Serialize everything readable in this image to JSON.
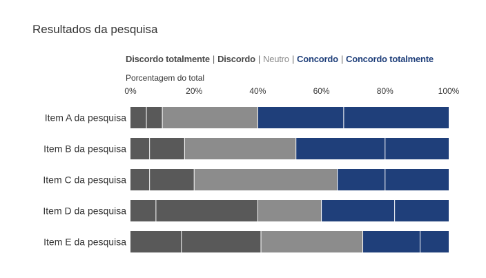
{
  "chart_data": {
    "type": "bar",
    "orientation": "horizontal",
    "stacked": true,
    "title": "Resultados da pesquisa",
    "xlabel": "Porcentagem do total",
    "ylabel": "",
    "xlim": [
      0,
      100
    ],
    "x_ticks": [
      "0%",
      "20%",
      "40%",
      "60%",
      "80%",
      "100%"
    ],
    "grid": false,
    "legend_position": "top",
    "categories": [
      "Item A da pesquisa",
      "Item B da pesquisa",
      "Item C da pesquisa",
      "Item D da pesquisa",
      "Item E da pesquisa"
    ],
    "series": [
      {
        "name": "Discordo totalmente",
        "color": "#595959",
        "values": [
          5,
          6,
          6,
          8,
          16
        ]
      },
      {
        "name": "Discordo",
        "color": "#595959",
        "values": [
          5,
          11,
          14,
          32,
          25
        ]
      },
      {
        "name": "Neutro",
        "color": "#8c8c8c",
        "values": [
          30,
          35,
          45,
          20,
          32
        ]
      },
      {
        "name": "Concordo",
        "color": "#1f3f7a",
        "values": [
          27,
          28,
          15,
          23,
          18
        ]
      },
      {
        "name": "Concordo totalmente",
        "color": "#1f3f7a",
        "values": [
          33,
          20,
          20,
          17,
          9
        ]
      }
    ]
  },
  "legend": {
    "separator": "|",
    "items": [
      {
        "label": "Discordo totalmente",
        "style": "dark"
      },
      {
        "label": "Discordo",
        "style": "dark"
      },
      {
        "label": "Neutro",
        "style": "neutral"
      },
      {
        "label": "Concordo",
        "style": "blue"
      },
      {
        "label": "Concordo totalmente",
        "style": "blue"
      }
    ]
  }
}
